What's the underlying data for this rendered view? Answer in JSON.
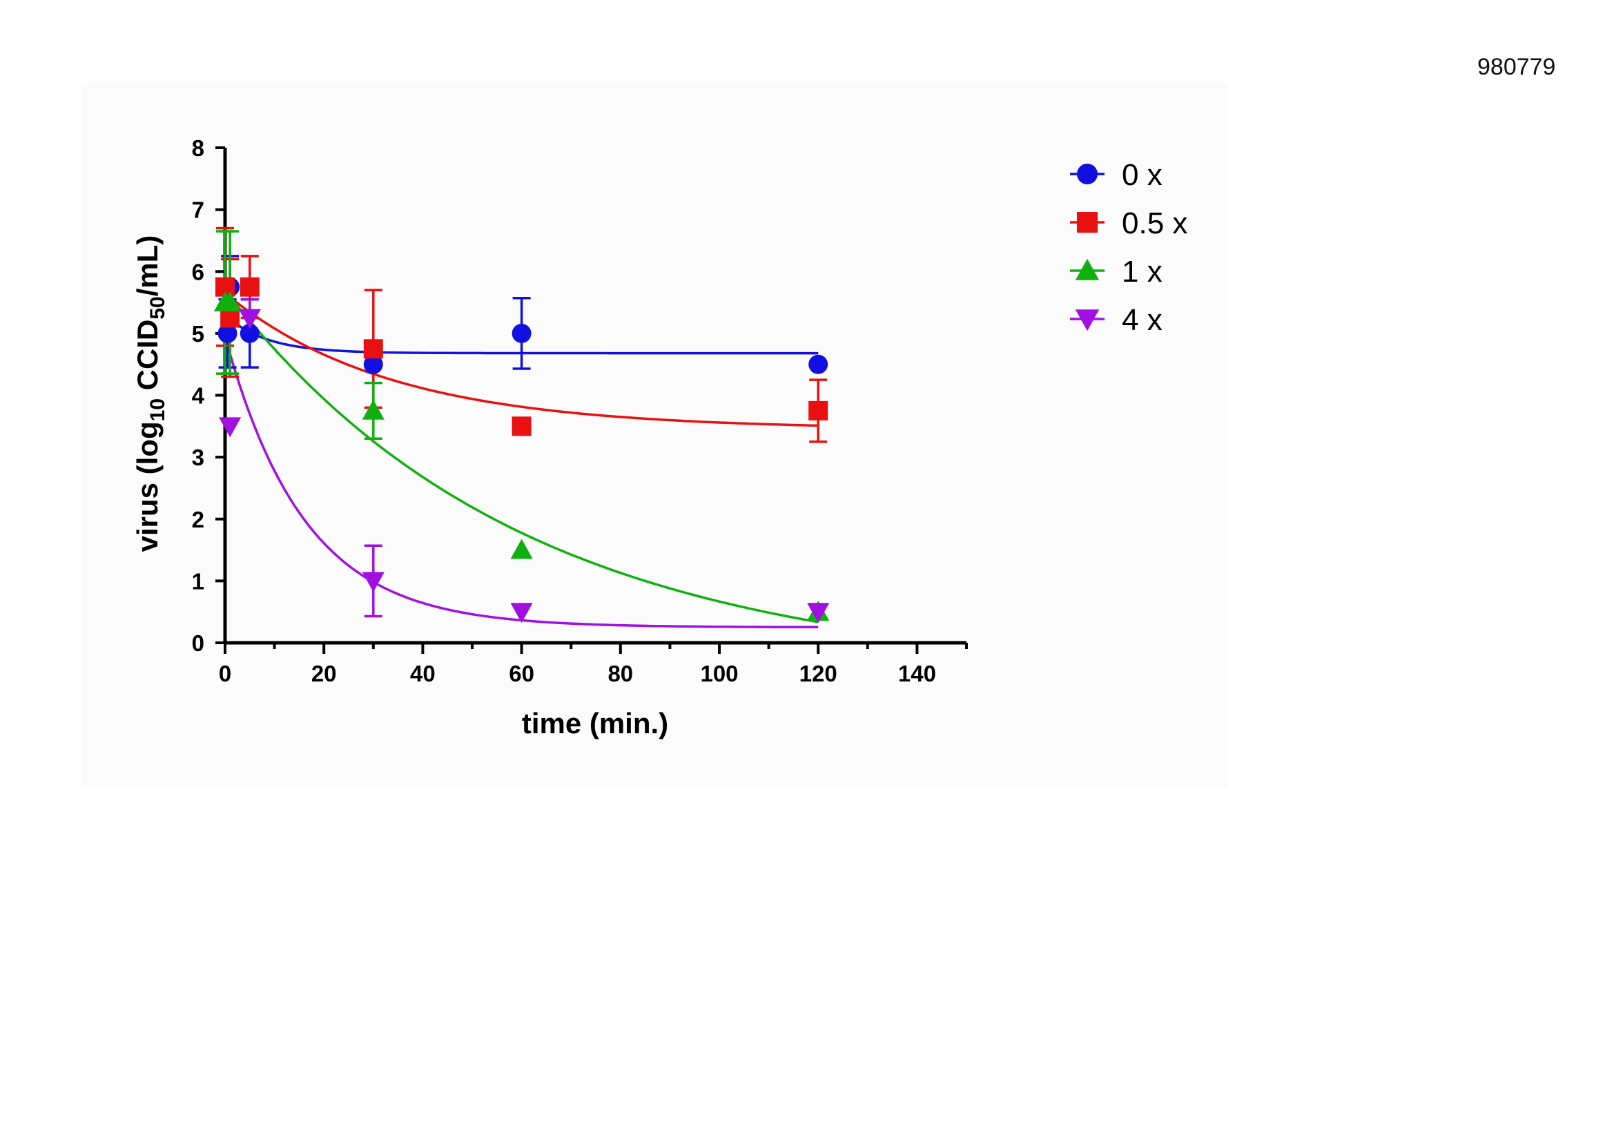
{
  "figure_id": "980779",
  "chart_data": {
    "type": "scatter",
    "title": "",
    "xlabel": "time (min.)",
    "ylabel_parts": [
      "virus (log",
      "10",
      " CCID",
      "50",
      "/mL)"
    ],
    "xlim": [
      0,
      150
    ],
    "ylim": [
      0,
      8
    ],
    "xticks": [
      0,
      20,
      40,
      60,
      80,
      100,
      120,
      140
    ],
    "yticks": [
      0,
      1,
      2,
      3,
      4,
      5,
      6,
      7,
      8
    ],
    "legend_position": "top-right",
    "series": [
      {
        "name": "0 x",
        "color": "#1010e0",
        "marker": "circle",
        "points": [
          {
            "x": 0.5,
            "y": 5.0,
            "err": 0.55
          },
          {
            "x": 1,
            "y": 5.75,
            "err": 0.5
          },
          {
            "x": 5,
            "y": 5.0,
            "err": 0.55
          },
          {
            "x": 30,
            "y": 4.5,
            "err": 0
          },
          {
            "x": 60,
            "y": 5.0,
            "err": 0.57
          },
          {
            "x": 120,
            "y": 4.5,
            "err": 0
          }
        ],
        "fit": {
          "plateau": 4.68,
          "span": 0.62,
          "k": 0.12
        }
      },
      {
        "name": "0.5 x",
        "color": "#e81010",
        "marker": "square",
        "points": [
          {
            "x": 0,
            "y": 5.75,
            "err": 0.95
          },
          {
            "x": 1,
            "y": 5.25,
            "err": 0.95
          },
          {
            "x": 5,
            "y": 5.75,
            "err": 0.5
          },
          {
            "x": 30,
            "y": 4.75,
            "err": 0.95
          },
          {
            "x": 60,
            "y": 3.5,
            "err": 0
          },
          {
            "x": 120,
            "y": 3.75,
            "err": 0.5
          }
        ],
        "fit": {
          "plateau": 3.45,
          "span": 2.2,
          "k": 0.03
        }
      },
      {
        "name": "1 x",
        "color": "#10b010",
        "marker": "triangle-up",
        "points": [
          {
            "x": 0,
            "y": 5.5,
            "err": 1.15
          },
          {
            "x": 1,
            "y": 5.5,
            "err": 1.15
          },
          {
            "x": 30,
            "y": 3.75,
            "err": 0.45
          },
          {
            "x": 60,
            "y": 1.5,
            "err": 0
          },
          {
            "x": 120,
            "y": 0.5,
            "err": 0
          }
        ],
        "fit": {
          "plateau": -0.5,
          "span": 6.2,
          "k": 0.0167
        }
      },
      {
        "name": "4 x",
        "color": "#a010e0",
        "marker": "triangle-down",
        "points": [
          {
            "x": 1,
            "y": 3.5,
            "err": 0
          },
          {
            "x": 5,
            "y": 5.25,
            "err": 0.3
          },
          {
            "x": 30,
            "y": 1.0,
            "err": 0.57
          },
          {
            "x": 60,
            "y": 0.5,
            "err": 0
          },
          {
            "x": 120,
            "y": 0.5,
            "err": 0
          }
        ],
        "fit": {
          "plateau": 0.25,
          "span": 4.7,
          "k": 0.062
        }
      }
    ]
  }
}
